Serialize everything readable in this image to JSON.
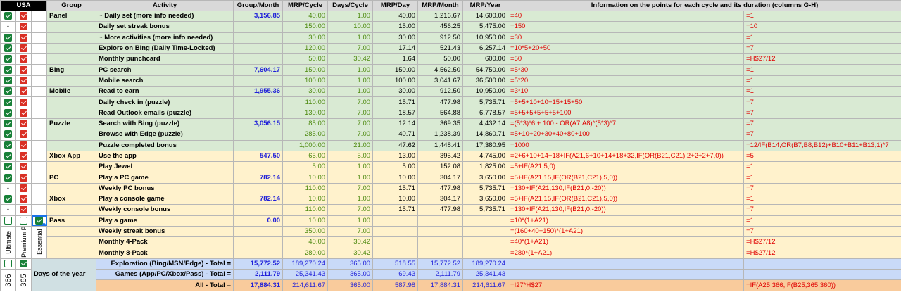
{
  "headers": {
    "usa": "USA",
    "group": "Group",
    "activity": "Activity",
    "group_month": "Group/Month",
    "mrp_cycle": "MRP/Cycle",
    "days_cycle": "Days/Cycle",
    "mrp_day": "MRP/Day",
    "mrp_month": "MRP/Month",
    "mrp_year": "MRP/Year",
    "info": "Information on the points for each cycle and its duration (columns G-H)"
  },
  "rows": [
    {
      "c1": "on",
      "c2": "on",
      "group": "Panel",
      "activity": "~ Daily set (more info needed)",
      "gm": "3,156.85",
      "cycle": "40.00",
      "days": "1.00",
      "day": "40.00",
      "month": "1,216.67",
      "year": "14,600.00",
      "f1": "=40",
      "f2": "=1",
      "bg": "g"
    },
    {
      "c1": "-",
      "c2": "on",
      "group": "",
      "activity": "Daily set streak bonus",
      "gm": "",
      "cycle": "150.00",
      "days": "10.00",
      "day": "15.00",
      "month": "456.25",
      "year": "5,475.00",
      "f1": "=150",
      "f2": "=10",
      "bg": "g"
    },
    {
      "c1": "on",
      "c2": "on",
      "group": "",
      "activity": "~ More activities (more info needed)",
      "gm": "",
      "cycle": "30.00",
      "days": "1.00",
      "day": "30.00",
      "month": "912.50",
      "year": "10,950.00",
      "f1": "=30",
      "f2": "=1",
      "bg": "g"
    },
    {
      "c1": "on",
      "c2": "on",
      "group": "",
      "activity": "Explore on Bing (Daily Time-Locked)",
      "gm": "",
      "cycle": "120.00",
      "days": "7.00",
      "day": "17.14",
      "month": "521.43",
      "year": "6,257.14",
      "f1": "=10*5+20+50",
      "f2": "=7",
      "bg": "g"
    },
    {
      "c1": "on",
      "c2": "on",
      "group": "",
      "activity": "Monthly punchcard",
      "gm": "",
      "cycle": "50.00",
      "days": "30.42",
      "day": "1.64",
      "month": "50.00",
      "year": "600.00",
      "f1": "=50",
      "f2": "=H$27/12",
      "bg": "g"
    },
    {
      "c1": "on",
      "c2": "on",
      "group": "Bing",
      "activity": "PC search",
      "gm": "7,604.17",
      "cycle": "150.00",
      "days": "1.00",
      "day": "150.00",
      "month": "4,562.50",
      "year": "54,750.00",
      "f1": "=5*30",
      "f2": "=1",
      "bg": "g"
    },
    {
      "c1": "on",
      "c2": "on",
      "group": "",
      "activity": "Mobile search",
      "gm": "",
      "cycle": "100.00",
      "days": "1.00",
      "day": "100.00",
      "month": "3,041.67",
      "year": "36,500.00",
      "f1": "=5*20",
      "f2": "=1",
      "bg": "g"
    },
    {
      "c1": "on",
      "c2": "on",
      "group": "Mobile",
      "activity": "Read to earn",
      "gm": "1,955.36",
      "cycle": "30.00",
      "days": "1.00",
      "day": "30.00",
      "month": "912.50",
      "year": "10,950.00",
      "f1": "=3*10",
      "f2": "=1",
      "bg": "g"
    },
    {
      "c1": "on",
      "c2": "on",
      "group": "",
      "activity": "Daily check in (puzzle)",
      "gm": "",
      "cycle": "110.00",
      "days": "7.00",
      "day": "15.71",
      "month": "477.98",
      "year": "5,735.71",
      "f1": "=5+5+10+10+15+15+50",
      "f2": "=7",
      "bg": "g"
    },
    {
      "c1": "on",
      "c2": "on",
      "group": "",
      "activity": "Read Outlook emails (puzzle)",
      "gm": "",
      "cycle": "130.00",
      "days": "7.00",
      "day": "18.57",
      "month": "564.88",
      "year": "6,778.57",
      "f1": "=5+5+5+5+5+5+100",
      "f2": "=7",
      "bg": "g"
    },
    {
      "c1": "on",
      "c2": "on",
      "group": "Puzzle",
      "activity": "Search with Bing (puzzle)",
      "gm": "3,056.15",
      "cycle": "85.00",
      "days": "7.00",
      "day": "12.14",
      "month": "369.35",
      "year": "4,432.14",
      "f1": "=(5*3)*6 + 100 - OR(A7,A8)*(5*3)*7",
      "f2": "=7",
      "bg": "g"
    },
    {
      "c1": "on",
      "c2": "on",
      "group": "",
      "activity": "Browse with Edge (puzzle)",
      "gm": "",
      "cycle": "285.00",
      "days": "7.00",
      "day": "40.71",
      "month": "1,238.39",
      "year": "14,860.71",
      "f1": "=5+10+20+30+40+80+100",
      "f2": "=7",
      "bg": "g"
    },
    {
      "c1": "on",
      "c2": "on",
      "group": "",
      "activity": "Puzzle completed bonus",
      "gm": "",
      "cycle": "1,000.00",
      "days": "21.00",
      "day": "47.62",
      "month": "1,448.41",
      "year": "17,380.95",
      "f1": "=1000",
      "f2": "=12/IF(B14,OR(B7,B8,B12)+B10+B11+B13,1)*7",
      "bg": "g"
    },
    {
      "c1": "on",
      "c2": "on",
      "group": "Xbox App",
      "activity": "Use the app",
      "gm": "547.50",
      "cycle": "65.00",
      "days": "5.00",
      "day": "13.00",
      "month": "395.42",
      "year": "4,745.00",
      "f1": "=2+6+10+14+18+IF(A21,6+10+14+18+32,IF(OR(B21,C21),2+2+2+7,0))",
      "f2": "=5",
      "bg": "y"
    },
    {
      "c1": "on",
      "c2": "on",
      "group": "",
      "activity": "Play Jewel",
      "gm": "",
      "cycle": "5.00",
      "days": "1.00",
      "day": "5.00",
      "month": "152.08",
      "year": "1,825.00",
      "f1": "=5+IF(A21,5,0)",
      "f2": "=1",
      "bg": "y"
    },
    {
      "c1": "on",
      "c2": "on",
      "group": "PC",
      "activity": "Play a PC game",
      "gm": "782.14",
      "cycle": "10.00",
      "days": "1.00",
      "day": "10.00",
      "month": "304.17",
      "year": "3,650.00",
      "f1": "=5+IF(A21,15,IF(OR(B21,C21),5,0))",
      "f2": "=1",
      "bg": "y"
    },
    {
      "c1": "-",
      "c2": "on",
      "group": "",
      "activity": "Weekly PC bonus",
      "gm": "",
      "cycle": "110.00",
      "days": "7.00",
      "day": "15.71",
      "month": "477.98",
      "year": "5,735.71",
      "f1": "=130+IF(A21,130,IF(B21,0,-20))",
      "f2": "=7",
      "bg": "y"
    },
    {
      "c1": "on",
      "c2": "on",
      "group": "Xbox",
      "activity": "Play a console game",
      "gm": "782.14",
      "cycle": "10.00",
      "days": "1.00",
      "day": "10.00",
      "month": "304.17",
      "year": "3,650.00",
      "f1": "=5+IF(A21,15,IF(OR(B21,C21),5,0))",
      "f2": "=1",
      "bg": "y"
    },
    {
      "c1": "-",
      "c2": "on",
      "group": "",
      "activity": "Weekly console bonus",
      "gm": "",
      "cycle": "110.00",
      "days": "7.00",
      "day": "15.71",
      "month": "477.98",
      "year": "5,735.71",
      "f1": "=130+IF(A21,130,IF(B21,0,-20))",
      "f2": "=7",
      "bg": "y"
    },
    {
      "group": "Pass",
      "activity": "Play a game",
      "gm": "0.00",
      "cycle": "10.00",
      "days": "1.00",
      "day": "",
      "month": "",
      "year": "",
      "f1": "=10*(1+A21)",
      "f2": "=1",
      "bg": "y"
    },
    {
      "group": "",
      "activity": "Weekly streak bonus",
      "gm": "",
      "cycle": "350.00",
      "days": "7.00",
      "day": "",
      "month": "",
      "year": "",
      "f1": "=(160+40+150)*(1+A21)",
      "f2": "=7",
      "bg": "y"
    },
    {
      "group": "",
      "activity": "Monthly 4-Pack",
      "gm": "",
      "cycle": "40.00",
      "days": "30.42",
      "day": "",
      "month": "",
      "year": "",
      "f1": "=40*(1+A21)",
      "f2": "=H$27/12",
      "bg": "y"
    },
    {
      "group": "",
      "activity": "Monthly 8-Pack",
      "gm": "",
      "cycle": "280.00",
      "days": "30.42",
      "day": "",
      "month": "",
      "year": "",
      "f1": "=280*(1+A21)",
      "f2": "=H$27/12",
      "bg": "y"
    }
  ],
  "pass_labels": {
    "ultimate": "Ultimate",
    "premium": "Premium PC",
    "essential": "Essential"
  },
  "totals": {
    "days_label": "Days of the year",
    "days_a": "366",
    "days_b": "365",
    "rows": [
      {
        "label": "Exploration (Bing/MSN/Edge) - Total =",
        "gm": "15,772.52",
        "cycle": "189,270.24",
        "days": "365.00",
        "day": "518.55",
        "month": "15,772.52",
        "year": "189,270.24",
        "f1": "",
        "f2": "",
        "bg": "b"
      },
      {
        "label": "Games (App/PC/Xbox/Pass) - Total =",
        "gm": "2,111.79",
        "cycle": "25,341.43",
        "days": "365.00",
        "day": "69.43",
        "month": "2,111.79",
        "year": "25,341.43",
        "f1": "",
        "f2": "",
        "bg": "b"
      },
      {
        "label": "All - Total =",
        "gm": "17,884.31",
        "cycle": "214,611.67",
        "days": "365.00",
        "day": "587.98",
        "month": "17,884.31",
        "year": "214,611.67",
        "f1": "=I27*H$27",
        "f2": "=IF(A25,366,IF(B25,365,360))",
        "bg": "o"
      }
    ]
  }
}
